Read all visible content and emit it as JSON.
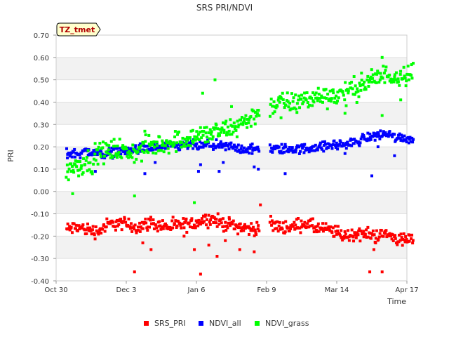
{
  "chart_data": {
    "type": "scatter",
    "title": "SRS PRI/NDVI",
    "xlabel": "Time",
    "ylabel": "PRI",
    "ylim": [
      -0.4,
      0.7
    ],
    "xlim_days": [
      0,
      170
    ],
    "x_ticks": [
      {
        "day": 0,
        "label": "Oct 30"
      },
      {
        "day": 34,
        "label": "Dec 3"
      },
      {
        "day": 68,
        "label": "Jan 6"
      },
      {
        "day": 102,
        "label": "Feb 9"
      },
      {
        "day": 136,
        "label": "Mar 14"
      },
      {
        "day": 170,
        "label": "Apr 17"
      }
    ],
    "y_ticks": [
      "-0.40",
      "-0.30",
      "-0.20",
      "-0.10",
      "0.00",
      "0.10",
      "0.20",
      "0.30",
      "0.40",
      "0.50",
      "0.60",
      "0.70"
    ],
    "grid": "horizontal bands",
    "legend_position": "bottom",
    "annotation": "TZ_tmet",
    "data_gap_days": [
      98.5,
      103.5
    ],
    "series": [
      {
        "name": "SRS_PRI",
        "color": "#ff0000",
        "x": [
          5,
          10,
          15,
          20,
          25,
          30,
          35,
          40,
          45,
          50,
          55,
          60,
          65,
          70,
          75,
          80,
          85,
          90,
          95,
          98,
          104,
          110,
          115,
          120,
          125,
          130,
          135,
          140,
          145,
          150,
          155,
          160,
          165,
          170,
          173
        ],
        "y": [
          -0.17,
          -0.16,
          -0.17,
          -0.18,
          -0.15,
          -0.14,
          -0.15,
          -0.16,
          -0.14,
          -0.15,
          -0.16,
          -0.15,
          -0.15,
          -0.13,
          -0.12,
          -0.14,
          -0.15,
          -0.16,
          -0.17,
          -0.16,
          -0.15,
          -0.16,
          -0.16,
          -0.14,
          -0.16,
          -0.17,
          -0.18,
          -0.2,
          -0.19,
          -0.19,
          -0.2,
          -0.19,
          -0.21,
          -0.22,
          -0.21
        ],
        "outliers": [
          [
            38,
            -0.36
          ],
          [
            70,
            -0.37
          ],
          [
            152,
            -0.36
          ],
          [
            158,
            -0.36
          ],
          [
            46,
            -0.26
          ],
          [
            67,
            -0.26
          ],
          [
            78,
            -0.29
          ],
          [
            89,
            -0.26
          ],
          [
            96,
            -0.27
          ],
          [
            99,
            -0.06
          ],
          [
            154,
            -0.26
          ],
          [
            42,
            -0.23
          ],
          [
            74,
            -0.24
          ],
          [
            82,
            -0.22
          ],
          [
            62,
            -0.2
          ]
        ]
      },
      {
        "name": "NDVI_all",
        "color": "#0000ff",
        "x": [
          5,
          10,
          15,
          20,
          25,
          30,
          35,
          40,
          45,
          50,
          55,
          60,
          65,
          70,
          75,
          80,
          85,
          90,
          95,
          98,
          104,
          110,
          115,
          120,
          125,
          130,
          135,
          140,
          145,
          150,
          155,
          160,
          165,
          170,
          173
        ],
        "y": [
          0.17,
          0.17,
          0.18,
          0.17,
          0.17,
          0.18,
          0.18,
          0.19,
          0.19,
          0.2,
          0.2,
          0.2,
          0.21,
          0.2,
          0.21,
          0.2,
          0.2,
          0.19,
          0.19,
          0.19,
          0.19,
          0.19,
          0.19,
          0.19,
          0.2,
          0.2,
          0.21,
          0.21,
          0.22,
          0.24,
          0.25,
          0.26,
          0.24,
          0.24,
          0.23
        ],
        "outliers": [
          [
            19,
            0.09
          ],
          [
            43,
            0.08
          ],
          [
            69,
            0.09
          ],
          [
            79,
            0.09
          ],
          [
            96,
            0.11
          ],
          [
            98,
            0.1
          ],
          [
            111,
            0.08
          ],
          [
            153,
            0.07
          ],
          [
            164,
            0.16
          ],
          [
            48,
            0.13
          ],
          [
            70,
            0.12
          ],
          [
            81,
            0.13
          ],
          [
            140,
            0.17
          ],
          [
            156,
            0.2
          ],
          [
            95,
            0.17
          ]
        ]
      },
      {
        "name": "NDVI_grass",
        "color": "#00ff00",
        "x": [
          5,
          8,
          11,
          14,
          17,
          20,
          25,
          30,
          35,
          40,
          45,
          50,
          55,
          60,
          65,
          70,
          75,
          80,
          85,
          90,
          95,
          98,
          104,
          110,
          115,
          120,
          125,
          130,
          135,
          140,
          145,
          150,
          155,
          160,
          165,
          170,
          173
        ],
        "y": [
          0.08,
          0.12,
          0.11,
          0.14,
          0.13,
          0.17,
          0.18,
          0.19,
          0.17,
          0.18,
          0.2,
          0.21,
          0.22,
          0.23,
          0.24,
          0.25,
          0.26,
          0.27,
          0.28,
          0.31,
          0.33,
          0.36,
          0.38,
          0.4,
          0.39,
          0.41,
          0.42,
          0.43,
          0.43,
          0.44,
          0.46,
          0.48,
          0.51,
          0.52,
          0.52,
          0.53,
          0.53
        ],
        "outliers": [
          [
            8,
            -0.01
          ],
          [
            38,
            -0.02
          ],
          [
            71,
            0.44
          ],
          [
            77,
            0.5
          ],
          [
            67,
            -0.05
          ],
          [
            148,
            0.53
          ],
          [
            153,
            0.49
          ],
          [
            158,
            0.6
          ],
          [
            158,
            0.34
          ],
          [
            167,
            0.41
          ],
          [
            109,
            0.33
          ],
          [
            140,
            0.35
          ],
          [
            85,
            0.38
          ],
          [
            43,
            0.27
          ]
        ]
      }
    ]
  }
}
